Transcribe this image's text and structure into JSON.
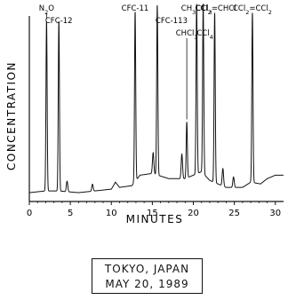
{
  "chart_data": {
    "type": "line",
    "title": "",
    "xlabel": "MINUTES",
    "ylabel": "CONCENTRATION",
    "xlim": [
      0,
      31
    ],
    "xticks": [
      0,
      5,
      10,
      15,
      20,
      25,
      30
    ],
    "grid": false,
    "baseline": [
      [
        0,
        0.02
      ],
      [
        2,
        0.03
      ],
      [
        3.5,
        0.03
      ],
      [
        6,
        0.02
      ],
      [
        8,
        0.03
      ],
      [
        10,
        0.04
      ],
      [
        10.5,
        0.08
      ],
      [
        11,
        0.05
      ],
      [
        12.5,
        0.06
      ],
      [
        13.5,
        0.12
      ],
      [
        15,
        0.13
      ],
      [
        17,
        0.1
      ],
      [
        19,
        0.1
      ],
      [
        21,
        0.14
      ],
      [
        22,
        0.09
      ],
      [
        24,
        0.05
      ],
      [
        26,
        0.05
      ],
      [
        27,
        0.08
      ],
      [
        28.2,
        0.07
      ],
      [
        29,
        0.1
      ],
      [
        30,
        0.12
      ],
      [
        31,
        0.12
      ]
    ],
    "peaks": [
      {
        "label": "N2O",
        "x": 2.1,
        "height": 0.97
      },
      {
        "label": "CFC-12",
        "x": 3.6,
        "height": 0.97
      },
      {
        "label": "CFC-11",
        "x": 12.9,
        "height": 0.97
      },
      {
        "label": "CFC-113",
        "x": 15.6,
        "height": 0.97
      },
      {
        "label": "CHCl3",
        "x": 19.2,
        "height": 0.32
      },
      {
        "label": "CH3CCl3",
        "x": 20.4,
        "height": 0.97
      },
      {
        "label": "CCl4",
        "x": 21.2,
        "height": 0.97
      },
      {
        "label": "CCl2=CHCl",
        "x": 22.6,
        "height": 0.97
      },
      {
        "label": "CCl2=CCl2",
        "x": 27.2,
        "height": 0.97
      }
    ],
    "minor_peaks": [
      {
        "x": 4.6,
        "height": 0.06
      },
      {
        "x": 7.7,
        "height": 0.04
      },
      {
        "x": 15.1,
        "height": 0.12
      },
      {
        "x": 18.6,
        "height": 0.14
      },
      {
        "x": 23.6,
        "height": 0.1
      },
      {
        "x": 24.9,
        "height": 0.06
      }
    ]
  },
  "caption": {
    "line1": "TOKYO, JAPAN",
    "line2": "MAY 20, 1989"
  }
}
